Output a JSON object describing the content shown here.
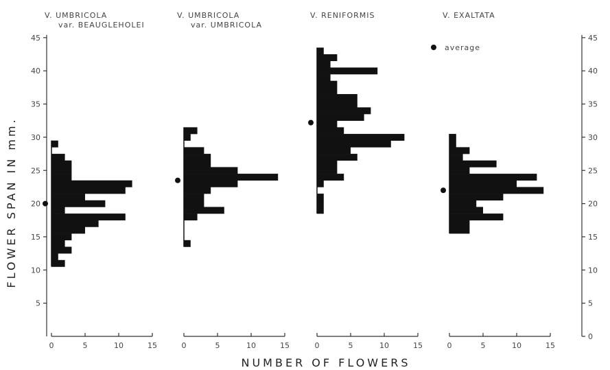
{
  "chart_data": {
    "type": "bar",
    "orientation": "horizontal-histogram",
    "ylabel": "FLOWER  SPAN  IN  mm.",
    "xlabel": "NUMBER  OF  FLOWERS",
    "legend": {
      "marker": "dot",
      "label": "average",
      "placement": "top-right"
    },
    "y_ticks": [
      5,
      10,
      15,
      20,
      25,
      30,
      35,
      40,
      45
    ],
    "y_ticks_right": [
      0,
      5,
      10,
      15,
      20,
      25,
      30,
      35,
      40,
      45
    ],
    "ylim": [
      0,
      45
    ],
    "x_ticks_labels": [
      "0",
      "5",
      "10",
      "15"
    ],
    "xlim": [
      0,
      15
    ],
    "panels": [
      {
        "title_lines": [
          "V. UMBRICOLA",
          "var. BEAUGLEHOLEI"
        ],
        "average": 20,
        "bins": [
          {
            "span": 11,
            "count": 2
          },
          {
            "span": 12,
            "count": 1
          },
          {
            "span": 13,
            "count": 3
          },
          {
            "span": 14,
            "count": 2
          },
          {
            "span": 15,
            "count": 3
          },
          {
            "span": 16,
            "count": 5
          },
          {
            "span": 17,
            "count": 7
          },
          {
            "span": 18,
            "count": 11
          },
          {
            "span": 19,
            "count": 2
          },
          {
            "span": 20,
            "count": 8
          },
          {
            "span": 21,
            "count": 5
          },
          {
            "span": 22,
            "count": 11
          },
          {
            "span": 23,
            "count": 12
          },
          {
            "span": 24,
            "count": 3
          },
          {
            "span": 25,
            "count": 3
          },
          {
            "span": 26,
            "count": 3
          },
          {
            "span": 27,
            "count": 2
          },
          {
            "span": 29,
            "count": 1
          }
        ]
      },
      {
        "title_lines": [
          "V. UMBRICOLA",
          "var. UMBRICOLA"
        ],
        "average": 23.5,
        "bins": [
          {
            "span": 14,
            "count": 1
          },
          {
            "span": 18,
            "count": 2
          },
          {
            "span": 19,
            "count": 6
          },
          {
            "span": 20,
            "count": 3
          },
          {
            "span": 21,
            "count": 3
          },
          {
            "span": 22,
            "count": 4
          },
          {
            "span": 23,
            "count": 8
          },
          {
            "span": 24,
            "count": 14
          },
          {
            "span": 25,
            "count": 8
          },
          {
            "span": 26,
            "count": 4
          },
          {
            "span": 27,
            "count": 4
          },
          {
            "span": 28,
            "count": 3
          },
          {
            "span": 30,
            "count": 1
          },
          {
            "span": 31,
            "count": 2
          }
        ]
      },
      {
        "title_lines": [
          "V. RENIFORMIS"
        ],
        "average": 32.2,
        "bins": [
          {
            "span": 19,
            "count": 1
          },
          {
            "span": 20,
            "count": 1
          },
          {
            "span": 21,
            "count": 1
          },
          {
            "span": 23,
            "count": 1
          },
          {
            "span": 24,
            "count": 4
          },
          {
            "span": 25,
            "count": 3
          },
          {
            "span": 26,
            "count": 3
          },
          {
            "span": 27,
            "count": 6
          },
          {
            "span": 28,
            "count": 5
          },
          {
            "span": 29,
            "count": 11
          },
          {
            "span": 30,
            "count": 13
          },
          {
            "span": 31,
            "count": 4
          },
          {
            "span": 32,
            "count": 3
          },
          {
            "span": 33,
            "count": 7
          },
          {
            "span": 34,
            "count": 8
          },
          {
            "span": 35,
            "count": 6
          },
          {
            "span": 36,
            "count": 6
          },
          {
            "span": 37,
            "count": 3
          },
          {
            "span": 38,
            "count": 3
          },
          {
            "span": 39,
            "count": 2
          },
          {
            "span": 40,
            "count": 9
          },
          {
            "span": 41,
            "count": 2
          },
          {
            "span": 42,
            "count": 3
          },
          {
            "span": 43,
            "count": 1
          }
        ]
      },
      {
        "title_lines": [
          "V. EXALTATA"
        ],
        "average": 22,
        "bins": [
          {
            "span": 16,
            "count": 3
          },
          {
            "span": 17,
            "count": 3
          },
          {
            "span": 18,
            "count": 8
          },
          {
            "span": 19,
            "count": 5
          },
          {
            "span": 20,
            "count": 4
          },
          {
            "span": 21,
            "count": 8
          },
          {
            "span": 22,
            "count": 14
          },
          {
            "span": 23,
            "count": 10
          },
          {
            "span": 24,
            "count": 13
          },
          {
            "span": 25,
            "count": 3
          },
          {
            "span": 26,
            "count": 7
          },
          {
            "span": 27,
            "count": 2
          },
          {
            "span": 28,
            "count": 3
          },
          {
            "span": 29,
            "count": 1
          },
          {
            "span": 30,
            "count": 1
          }
        ]
      }
    ]
  }
}
